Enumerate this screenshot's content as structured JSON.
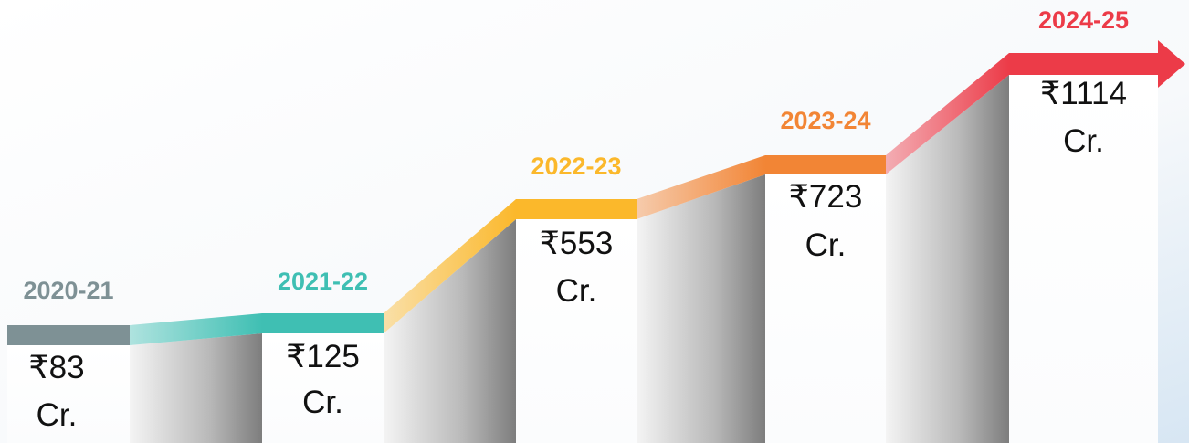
{
  "steps": [
    {
      "year": "2020-21",
      "amount": "₹83",
      "unit": "Cr.",
      "color": "#7e9195"
    },
    {
      "year": "2021-22",
      "amount": "₹125",
      "unit": "Cr.",
      "color": "#3fbfb3"
    },
    {
      "year": "2022-23",
      "amount": "₹553",
      "unit": "Cr.",
      "color": "#fbb82b"
    },
    {
      "year": "2023-24",
      "amount": "₹723",
      "unit": "Cr.",
      "color": "#f28535"
    },
    {
      "year": "2024-25",
      "amount": "₹1114",
      "unit": "Cr.",
      "color": "#ec3b48"
    }
  ]
}
